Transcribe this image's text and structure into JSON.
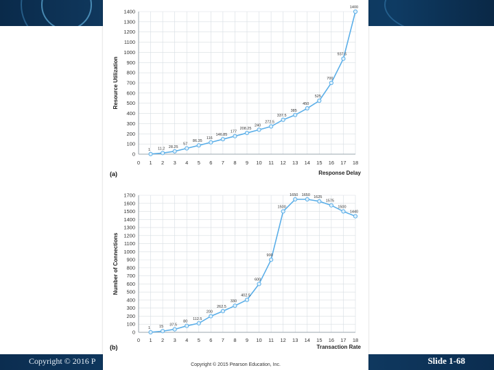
{
  "slide": {
    "footer_left": "Copyright © 2016 P",
    "footer_right": "Slide 1-68",
    "figure_copyright": "Copyright © 2015 Pearson Education, Inc."
  },
  "chart_data": [
    {
      "type": "line",
      "panel_label": "(a)",
      "title": "",
      "xlabel": "Response Delay",
      "ylabel": "Resource Utilization",
      "xlim": [
        0,
        18
      ],
      "ylim": [
        0,
        1400
      ],
      "x_ticks": [
        0,
        1,
        2,
        3,
        4,
        5,
        6,
        7,
        8,
        9,
        10,
        11,
        12,
        13,
        14,
        15,
        16,
        17,
        18
      ],
      "y_ticks": [
        0,
        100,
        200,
        300,
        400,
        500,
        600,
        700,
        800,
        900,
        1000,
        1100,
        1200,
        1300,
        1400
      ],
      "grid": true,
      "color": "#5aaee8",
      "series": [
        {
          "x": [
            1,
            2,
            3,
            4,
            5,
            6,
            7,
            8,
            9,
            10,
            11,
            12,
            13,
            14,
            15,
            16,
            17,
            18
          ],
          "values": [
            1,
            11.2,
            28.25,
            57,
            86.35,
            116,
            146.85,
            177,
            208.25,
            240,
            272.5,
            337.5,
            385,
            450,
            525,
            700,
            937.5,
            1400
          ],
          "labels": [
            "1",
            "11.2",
            "28.25",
            "57",
            "86.35",
            "116",
            "146.85",
            "177",
            "208.25",
            "240",
            "272.5",
            "337.5",
            "385",
            "450",
            "525",
            "700",
            "937.5",
            "1400"
          ]
        }
      ]
    },
    {
      "type": "line",
      "panel_label": "(b)",
      "title": "",
      "xlabel": "Transaction Rate",
      "ylabel": "Number of Connections",
      "xlim": [
        0,
        18
      ],
      "ylim": [
        0,
        1700
      ],
      "x_ticks": [
        0,
        1,
        2,
        3,
        4,
        5,
        6,
        7,
        8,
        9,
        10,
        11,
        12,
        13,
        14,
        15,
        16,
        17,
        18
      ],
      "y_ticks": [
        0,
        100,
        200,
        300,
        400,
        500,
        600,
        700,
        800,
        900,
        1000,
        1100,
        1200,
        1300,
        1400,
        1500,
        1600,
        1700
      ],
      "grid": true,
      "color": "#5aaee8",
      "series": [
        {
          "x": [
            1,
            2,
            3,
            4,
            5,
            6,
            7,
            8,
            9,
            10,
            11,
            12,
            13,
            14,
            15,
            16,
            17,
            18
          ],
          "values": [
            1,
            15,
            37.5,
            80,
            112.5,
            200,
            262.5,
            330,
            402.5,
            600,
            900,
            1500,
            1650,
            1650,
            1625,
            1575,
            1500,
            1440
          ],
          "labels": [
            "1",
            "15",
            "37.5",
            "80",
            "112.5",
            "200",
            "262.5",
            "330",
            "402.5",
            "600",
            "900",
            "1500",
            "1650",
            "1650",
            "1625",
            "1575",
            "1500",
            "1440"
          ]
        }
      ]
    }
  ]
}
